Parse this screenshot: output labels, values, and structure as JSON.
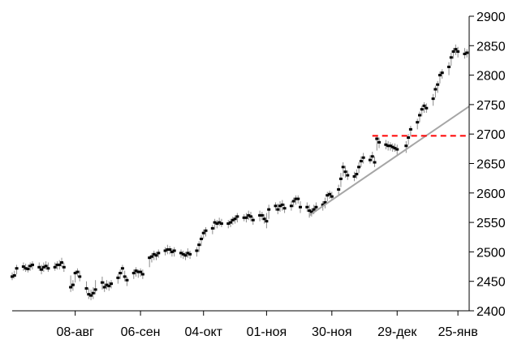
{
  "chart_data": {
    "type": "ohlc",
    "title": "",
    "xlabel": "",
    "ylabel": "",
    "y_axis_side": "right",
    "ylim": [
      2400,
      2900
    ],
    "yticks": [
      2400,
      2450,
      2500,
      2550,
      2600,
      2650,
      2700,
      2750,
      2800,
      2850,
      2900
    ],
    "x_start_date": "2018-07-11",
    "x_end_date": "2019-01-30",
    "xticks": [
      {
        "date": "2018-08-08",
        "label": "08-авг"
      },
      {
        "date": "2018-09-06",
        "label": "06-сен"
      },
      {
        "date": "2018-10-04",
        "label": "04-окт"
      },
      {
        "date": "2018-11-01",
        "label": "01-ноя"
      },
      {
        "date": "2018-11-30",
        "label": "30-ноя"
      },
      {
        "date": "2018-12-29",
        "label": "29-дек"
      },
      {
        "date": "2019-01-25",
        "label": "25-янв"
      }
    ],
    "grid": false,
    "legend": "none",
    "colors": {
      "bar": "#8c8c8c",
      "close": "#000000",
      "trendline": "#a6a6a6",
      "resistance": "#ff0000"
    },
    "trendline": {
      "start": {
        "date": "2018-11-20",
        "value": 2562
      },
      "end": {
        "date": "2019-01-30",
        "value": 2747
      }
    },
    "resistance": {
      "start": {
        "date": "2018-12-18",
        "value": 2697
      },
      "end": {
        "date": "2019-01-30",
        "value": 2697
      }
    },
    "series": [
      {
        "points": [
          [
            "2018-07-11",
            2465,
            2452,
            2458
          ],
          [
            "2018-07-12",
            2468,
            2455,
            2460
          ],
          [
            "2018-07-13",
            2478,
            2462,
            2472
          ],
          [
            "2018-07-16",
            2482,
            2468,
            2475
          ],
          [
            "2018-07-17",
            2480,
            2466,
            2472
          ],
          [
            "2018-07-18",
            2478,
            2465,
            2471
          ],
          [
            "2018-07-19",
            2482,
            2468,
            2476
          ],
          [
            "2018-07-20",
            2484,
            2470,
            2478
          ],
          [
            "2018-07-23",
            2482,
            2468,
            2474
          ],
          [
            "2018-07-24",
            2478,
            2462,
            2470
          ],
          [
            "2018-07-25",
            2482,
            2466,
            2474
          ],
          [
            "2018-07-26",
            2484,
            2470,
            2476
          ],
          [
            "2018-07-27",
            2482,
            2466,
            2472
          ],
          [
            "2018-07-30",
            2482,
            2468,
            2474
          ],
          [
            "2018-07-31",
            2484,
            2470,
            2478
          ],
          [
            "2018-08-01",
            2486,
            2470,
            2478
          ],
          [
            "2018-08-02",
            2490,
            2474,
            2482
          ],
          [
            "2018-08-03",
            2482,
            2466,
            2474
          ],
          [
            "2018-08-06",
            2460,
            2432,
            2440
          ],
          [
            "2018-08-07",
            2452,
            2434,
            2444
          ],
          [
            "2018-08-08",
            2468,
            2448,
            2464
          ],
          [
            "2018-08-09",
            2472,
            2458,
            2466
          ],
          [
            "2018-08-10",
            2468,
            2450,
            2458
          ],
          [
            "2018-08-13",
            2450,
            2430,
            2438
          ],
          [
            "2018-08-14",
            2438,
            2420,
            2428
          ],
          [
            "2018-08-15",
            2436,
            2418,
            2426
          ],
          [
            "2018-08-16",
            2440,
            2420,
            2430
          ],
          [
            "2018-08-17",
            2452,
            2428,
            2436
          ],
          [
            "2018-08-20",
            2458,
            2436,
            2448
          ],
          [
            "2018-08-21",
            2450,
            2432,
            2440
          ],
          [
            "2018-08-22",
            2452,
            2436,
            2444
          ],
          [
            "2018-08-23",
            2450,
            2434,
            2442
          ],
          [
            "2018-08-24",
            2452,
            2438,
            2446
          ],
          [
            "2018-08-27",
            2462,
            2446,
            2456
          ],
          [
            "2018-08-28",
            2470,
            2454,
            2464
          ],
          [
            "2018-08-29",
            2478,
            2462,
            2472
          ],
          [
            "2018-08-30",
            2468,
            2450,
            2458
          ],
          [
            "2018-08-31",
            2458,
            2442,
            2452
          ],
          [
            "2018-09-03",
            2470,
            2454,
            2464
          ],
          [
            "2018-09-04",
            2474,
            2458,
            2468
          ],
          [
            "2018-09-05",
            2470,
            2456,
            2466
          ],
          [
            "2018-09-06",
            2472,
            2458,
            2466
          ],
          [
            "2018-09-07",
            2470,
            2454,
            2462
          ],
          [
            "2018-09-10",
            2494,
            2474,
            2490
          ],
          [
            "2018-09-11",
            2498,
            2482,
            2492
          ],
          [
            "2018-09-12",
            2502,
            2486,
            2496
          ],
          [
            "2018-09-13",
            2500,
            2486,
            2494
          ],
          [
            "2018-09-14",
            2504,
            2490,
            2498
          ],
          [
            "2018-09-17",
            2508,
            2494,
            2502
          ],
          [
            "2018-09-18",
            2512,
            2496,
            2504
          ],
          [
            "2018-09-19",
            2510,
            2496,
            2504
          ],
          [
            "2018-09-20",
            2506,
            2492,
            2500
          ],
          [
            "2018-09-21",
            2508,
            2492,
            2502
          ],
          [
            "2018-09-24",
            2504,
            2490,
            2498
          ],
          [
            "2018-09-25",
            2502,
            2488,
            2496
          ],
          [
            "2018-09-26",
            2500,
            2486,
            2494
          ],
          [
            "2018-09-27",
            2506,
            2490,
            2498
          ],
          [
            "2018-09-28",
            2502,
            2488,
            2496
          ],
          [
            "2018-10-01",
            2508,
            2492,
            2502
          ],
          [
            "2018-10-02",
            2518,
            2500,
            2512
          ],
          [
            "2018-10-03",
            2528,
            2510,
            2522
          ],
          [
            "2018-10-04",
            2538,
            2522,
            2532
          ],
          [
            "2018-10-05",
            2542,
            2526,
            2536
          ],
          [
            "2018-10-08",
            2546,
            2530,
            2540
          ],
          [
            "2018-10-09",
            2556,
            2538,
            2550
          ],
          [
            "2018-10-10",
            2554,
            2540,
            2548
          ],
          [
            "2018-10-11",
            2558,
            2544,
            2550
          ],
          [
            "2018-10-12",
            2556,
            2542,
            2548
          ],
          [
            "2018-10-15",
            2554,
            2540,
            2548
          ],
          [
            "2018-10-16",
            2556,
            2542,
            2550
          ],
          [
            "2018-10-17",
            2560,
            2546,
            2554
          ],
          [
            "2018-10-18",
            2562,
            2548,
            2556
          ],
          [
            "2018-10-19",
            2566,
            2550,
            2560
          ],
          [
            "2018-10-22",
            2564,
            2552,
            2558
          ],
          [
            "2018-10-23",
            2566,
            2550,
            2558
          ],
          [
            "2018-10-24",
            2570,
            2554,
            2562
          ],
          [
            "2018-10-25",
            2568,
            2552,
            2560
          ],
          [
            "2018-10-26",
            2560,
            2546,
            2554
          ],
          [
            "2018-10-29",
            2570,
            2552,
            2562
          ],
          [
            "2018-10-30",
            2568,
            2554,
            2562
          ],
          [
            "2018-10-31",
            2564,
            2548,
            2556
          ],
          [
            "2018-11-01",
            2566,
            2540,
            2552
          ],
          [
            "2018-11-02",
            2580,
            2556,
            2572
          ],
          [
            "2018-11-05",
            2584,
            2570,
            2578
          ],
          [
            "2018-11-06",
            2582,
            2564,
            2572
          ],
          [
            "2018-11-07",
            2586,
            2568,
            2578
          ],
          [
            "2018-11-08",
            2588,
            2570,
            2580
          ],
          [
            "2018-11-09",
            2582,
            2566,
            2574
          ],
          [
            "2018-11-12",
            2586,
            2570,
            2578
          ],
          [
            "2018-11-13",
            2592,
            2576,
            2586
          ],
          [
            "2018-11-14",
            2596,
            2580,
            2590
          ],
          [
            "2018-11-15",
            2596,
            2582,
            2590
          ],
          [
            "2018-11-16",
            2586,
            2566,
            2576
          ],
          [
            "2018-11-19",
            2584,
            2568,
            2576
          ],
          [
            "2018-11-20",
            2580,
            2558,
            2570
          ],
          [
            "2018-11-21",
            2574,
            2560,
            2568
          ],
          [
            "2018-11-22",
            2580,
            2564,
            2572
          ],
          [
            "2018-11-23",
            2584,
            2568,
            2576
          ],
          [
            "2018-11-26",
            2586,
            2570,
            2580
          ],
          [
            "2018-11-27",
            2592,
            2574,
            2584
          ],
          [
            "2018-11-28",
            2602,
            2586,
            2596
          ],
          [
            "2018-11-29",
            2604,
            2590,
            2598
          ],
          [
            "2018-11-30",
            2602,
            2588,
            2594
          ],
          [
            "2018-12-03",
            2614,
            2596,
            2606
          ],
          [
            "2018-12-04",
            2634,
            2610,
            2624
          ],
          [
            "2018-12-05",
            2652,
            2628,
            2644
          ],
          [
            "2018-12-06",
            2646,
            2626,
            2636
          ],
          [
            "2018-12-07",
            2638,
            2622,
            2630
          ],
          [
            "2018-12-10",
            2636,
            2620,
            2628
          ],
          [
            "2018-12-11",
            2640,
            2624,
            2632
          ],
          [
            "2018-12-12",
            2652,
            2634,
            2644
          ],
          [
            "2018-12-13",
            2662,
            2644,
            2654
          ],
          [
            "2018-12-14",
            2668,
            2650,
            2660
          ],
          [
            "2018-12-17",
            2664,
            2650,
            2656
          ],
          [
            "2018-12-18",
            2670,
            2654,
            2662
          ],
          [
            "2018-12-19",
            2662,
            2644,
            2652
          ],
          [
            "2018-12-20",
            2698,
            2672,
            2692
          ],
          [
            "2018-12-21",
            2694,
            2676,
            2686
          ],
          [
            "2018-12-24",
            2690,
            2674,
            2682
          ],
          [
            "2018-12-25",
            2688,
            2672,
            2680
          ],
          [
            "2018-12-26",
            2686,
            2672,
            2680
          ],
          [
            "2018-12-27",
            2684,
            2670,
            2678
          ],
          [
            "2018-12-28",
            2684,
            2670,
            2676
          ],
          [
            "2018-12-29",
            2682,
            2664,
            2674
          ],
          [
            "2019-01-02",
            2688,
            2668,
            2680
          ],
          [
            "2019-01-03",
            2700,
            2682,
            2694
          ],
          [
            "2019-01-04",
            2714,
            2696,
            2708
          ],
          [
            "2019-01-07",
            2726,
            2708,
            2720
          ],
          [
            "2019-01-08",
            2738,
            2720,
            2732
          ],
          [
            "2019-01-09",
            2748,
            2730,
            2742
          ],
          [
            "2019-01-10",
            2754,
            2736,
            2748
          ],
          [
            "2019-01-11",
            2752,
            2736,
            2744
          ],
          [
            "2019-01-14",
            2768,
            2748,
            2760
          ],
          [
            "2019-01-15",
            2782,
            2762,
            2776
          ],
          [
            "2019-01-16",
            2790,
            2770,
            2784
          ],
          [
            "2019-01-17",
            2806,
            2786,
            2800
          ],
          [
            "2019-01-18",
            2810,
            2794,
            2804
          ],
          [
            "2019-01-21",
            2822,
            2800,
            2814
          ],
          [
            "2019-01-22",
            2838,
            2816,
            2830
          ],
          [
            "2019-01-23",
            2846,
            2828,
            2840
          ],
          [
            "2019-01-24",
            2852,
            2834,
            2844
          ],
          [
            "2019-01-25",
            2848,
            2830,
            2840
          ],
          [
            "2019-01-28",
            2846,
            2828,
            2836
          ],
          [
            "2019-01-29",
            2844,
            2830,
            2838
          ]
        ]
      }
    ]
  }
}
